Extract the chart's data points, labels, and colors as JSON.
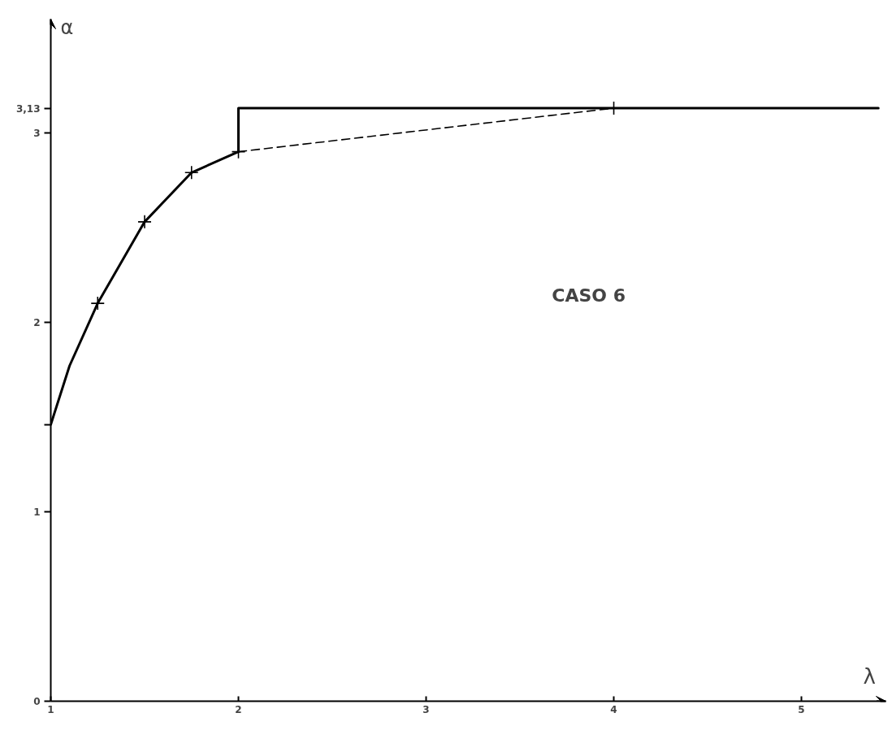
{
  "chart_data": {
    "type": "line",
    "xlabel": "λ",
    "ylabel": "α",
    "annotations": [
      "CASO 6"
    ],
    "series": [
      {
        "color": "#000000",
        "line_style": "solid",
        "marker": "none",
        "x": [
          1,
          1.1,
          1.25,
          1.5,
          1.75,
          2
        ],
        "values": [
          1.46,
          1.77,
          2.1,
          2.53,
          2.79,
          2.9
        ]
      },
      {
        "color": "#000000",
        "line_style": "solid",
        "marker": "none",
        "x": [
          2,
          2,
          5.41
        ],
        "values": [
          2.9,
          3.13,
          3.13
        ]
      },
      {
        "color": "#000000",
        "line_style": "dashed",
        "marker": "none",
        "x": [
          2,
          4
        ],
        "values": [
          2.9,
          3.13
        ]
      },
      {
        "type": "scatter",
        "color": "#000000",
        "marker": "cross",
        "x": [
          1.25,
          1.5,
          1.75,
          2,
          4
        ],
        "values": [
          2.1,
          2.53,
          2.79,
          2.9,
          3.13
        ]
      }
    ],
    "xlim": [
      1,
      5.45
    ],
    "ylim": [
      0,
      3.6
    ],
    "xticks": [
      1,
      2,
      3,
      4,
      5
    ],
    "yticks": [
      0,
      1,
      {
        "value": 1.46,
        "label": null
      },
      2,
      3,
      {
        "value": 3.13,
        "label": "3,13"
      }
    ],
    "grid": false
  }
}
